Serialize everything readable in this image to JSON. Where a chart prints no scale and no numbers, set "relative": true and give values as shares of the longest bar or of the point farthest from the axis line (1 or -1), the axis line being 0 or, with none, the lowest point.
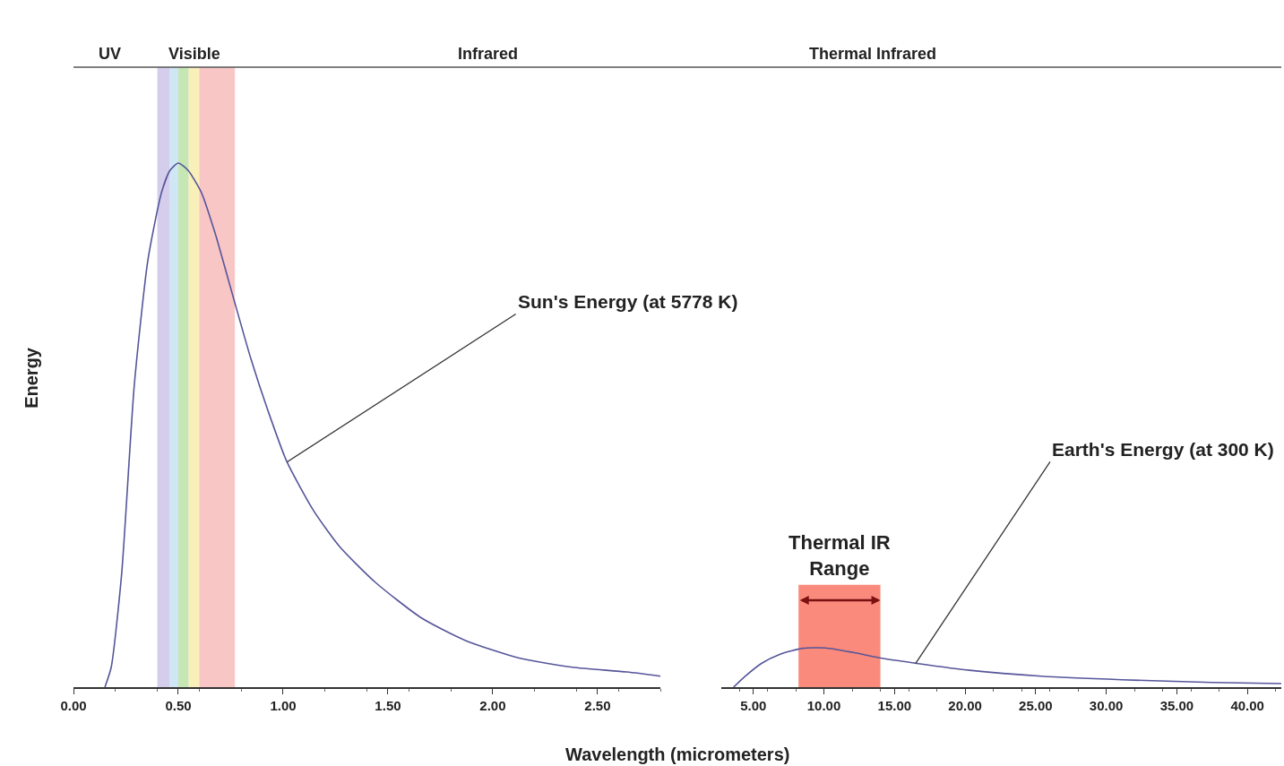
{
  "chart_data": [
    {
      "type": "line",
      "relative": true,
      "ylabel": "Energy",
      "xlabel": "Wavelength (micrometers)",
      "x": [
        0.15,
        0.18,
        0.23,
        0.29,
        0.355,
        0.42,
        0.46,
        0.5,
        0.547,
        0.61,
        0.675,
        0.76,
        0.846,
        0.93,
        1.017,
        1.145,
        1.27,
        1.44,
        1.66,
        1.87,
        2.13,
        2.38,
        2.64,
        2.8
      ],
      "series": [
        {
          "color": "#55559a",
          "values": [
            0,
            0.038,
            0.217,
            0.576,
            0.815,
            0.944,
            0.986,
            1.0,
            0.986,
            0.944,
            0.867,
            0.747,
            0.627,
            0.525,
            0.431,
            0.337,
            0.268,
            0.2,
            0.132,
            0.089,
            0.055,
            0.038,
            0.029,
            0.021
          ]
        }
      ],
      "xlim": [
        0,
        2.8
      ],
      "xticks": [
        {
          "value": 0,
          "label": "0.00"
        },
        {
          "value": 0.5,
          "label": "0.50"
        },
        {
          "value": 1,
          "label": "1.00"
        },
        {
          "value": 1.5,
          "label": "1.50"
        },
        {
          "value": 2,
          "label": "2.00"
        },
        {
          "value": 2.5,
          "label": "2.50"
        }
      ],
      "bands": [
        {
          "axis": "x",
          "from": 0.4,
          "to": 0.46,
          "color": "#d4cdeb"
        },
        {
          "axis": "x",
          "from": 0.46,
          "to": 0.5,
          "color": "#cfe6f4"
        },
        {
          "axis": "x",
          "from": 0.5,
          "to": 0.55,
          "color": "#c6e6b4"
        },
        {
          "axis": "x",
          "from": 0.55,
          "to": 0.6,
          "color": "#f8f0b8"
        },
        {
          "axis": "x",
          "from": 0.6,
          "to": 0.77,
          "color": "#f9c6c6"
        }
      ],
      "annotations": [
        "UV",
        "Visible",
        "Infrared",
        {
          "text": "Sun's Energy (at 5778 K)",
          "x": 1.02,
          "y": 0.43
        }
      ],
      "grid": false,
      "marker": "none",
      "line_style": "solid"
    },
    {
      "type": "line",
      "relative": true,
      "x": [
        3.6,
        4.4,
        5.6,
        6.9,
        8.5,
        10.1,
        12.0,
        14.2,
        16.5,
        20.3,
        25.4,
        31.1,
        37.5,
        42.4
      ],
      "series": [
        {
          "color": "#55559a",
          "values": [
            0,
            0.27,
            0.61,
            0.84,
            0.99,
            1.0,
            0.89,
            0.73,
            0.61,
            0.43,
            0.28,
            0.19,
            0.12,
            0.09
          ]
        }
      ],
      "xlim": [
        2.7,
        42.4
      ],
      "xticks": [
        {
          "value": 5,
          "label": "5.00"
        },
        {
          "value": 10,
          "label": "10.00"
        },
        {
          "value": 15,
          "label": "15.00"
        },
        {
          "value": 20,
          "label": "20.00"
        },
        {
          "value": 25,
          "label": "25.00"
        },
        {
          "value": 30,
          "label": "30.00"
        },
        {
          "value": 35,
          "label": "35.00"
        },
        {
          "value": 40,
          "label": "40.00"
        }
      ],
      "bands": [
        {
          "axis": "x",
          "from": 8.2,
          "to": 14.0,
          "label": "Thermal IR\nRange",
          "color": "#f98a7c"
        }
      ],
      "annotations": [
        "Thermal Infrared",
        {
          "text": "Earth's Energy (at 300 K)",
          "x": 16.5,
          "y": 0.61
        }
      ],
      "grid": false,
      "marker": "none",
      "line_style": "solid"
    }
  ]
}
